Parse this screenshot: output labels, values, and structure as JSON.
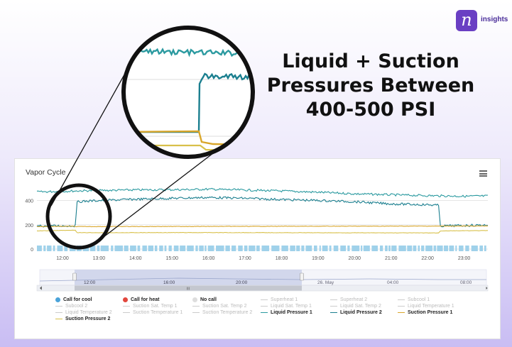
{
  "brand": {
    "logo_letter": "n",
    "name": "insights",
    "accent": "#6a3fc3"
  },
  "headline": [
    "Liquid + Suction",
    "Pressures Between",
    "400-500 PSI"
  ],
  "chart_data": {
    "type": "line",
    "title": "Vapor Cycle",
    "y_ticks": [
      "0",
      "200",
      "400"
    ],
    "ylim": [
      0,
      520
    ],
    "x_ticks": [
      "12:00",
      "13:00",
      "14:00",
      "15:00",
      "16:00",
      "17:00",
      "18:00",
      "19:00",
      "20:00",
      "21:00",
      "22:00",
      "23:00"
    ],
    "x_range_hours": [
      11.3,
      23.65
    ],
    "series": [
      {
        "name": "Liquid Pressure 1",
        "color": "#2b9aa0",
        "points": [
          [
            11.3,
            470
          ],
          [
            12.5,
            480
          ],
          [
            14.0,
            487
          ],
          [
            15.5,
            490
          ],
          [
            16.0,
            493
          ],
          [
            17.0,
            486
          ],
          [
            18.0,
            478
          ],
          [
            19.0,
            468
          ],
          [
            20.0,
            455
          ],
          [
            21.0,
            447
          ],
          [
            22.0,
            440
          ],
          [
            23.0,
            435
          ],
          [
            23.65,
            437
          ]
        ]
      },
      {
        "name": "Liquid Pressure 2",
        "color": "#1b7f8f",
        "points": [
          [
            11.3,
            190
          ],
          [
            12.35,
            192
          ],
          [
            12.4,
            390
          ],
          [
            13.0,
            400
          ],
          [
            14.0,
            410
          ],
          [
            15.0,
            418
          ],
          [
            16.0,
            425
          ],
          [
            17.0,
            418
          ],
          [
            18.0,
            408
          ],
          [
            19.0,
            400
          ],
          [
            20.0,
            390
          ],
          [
            21.0,
            372
          ],
          [
            22.0,
            365
          ],
          [
            22.3,
            360
          ],
          [
            22.35,
            190
          ],
          [
            23.65,
            198
          ]
        ]
      },
      {
        "name": "Suction Pressure 1",
        "color": "#d9a62a",
        "points": [
          [
            11.3,
            185
          ],
          [
            12.3,
            188
          ],
          [
            12.35,
            185
          ],
          [
            23.65,
            190
          ]
        ]
      },
      {
        "name": "Suction Pressure 2",
        "color": "#d8c04a",
        "points": [
          [
            11.3,
            150
          ],
          [
            12.35,
            155
          ],
          [
            12.4,
            135
          ],
          [
            16.0,
            136
          ],
          [
            20.0,
            134
          ],
          [
            22.3,
            133
          ],
          [
            22.35,
            150
          ],
          [
            23.65,
            152
          ]
        ]
      }
    ],
    "call_for_cool_color": "#9fd1ea",
    "navigator": {
      "labels": [
        "12:00",
        "16:00",
        "20:00",
        "26. May",
        "04:00",
        "08:00"
      ],
      "selection_label": "III"
    },
    "legend": [
      {
        "label": "Call for cool",
        "kind": "dot",
        "color": "#4aa3d9",
        "active": true
      },
      {
        "label": "Call for heat",
        "kind": "dot",
        "color": "#e2473d",
        "active": true
      },
      {
        "label": "No call",
        "kind": "dot",
        "color": "#dddddd",
        "active": true
      },
      {
        "label": "Superheat 1",
        "kind": "line",
        "color": "#cccccc",
        "active": false
      },
      {
        "label": "Superheat 2",
        "kind": "line",
        "color": "#cccccc",
        "active": false
      },
      {
        "label": "Subcool 1",
        "kind": "line",
        "color": "#cccccc",
        "active": false
      },
      {
        "label": "Subcool 2",
        "kind": "line",
        "color": "#cccccc",
        "active": false
      },
      {
        "label": "Suction Sat. Temp 1",
        "kind": "line",
        "color": "#cccccc",
        "active": false
      },
      {
        "label": "Suction Sat. Temp 2",
        "kind": "line",
        "color": "#cccccc",
        "active": false
      },
      {
        "label": "Liquid Sat. Temp 1",
        "kind": "line",
        "color": "#cccccc",
        "active": false
      },
      {
        "label": "Liquid Sat. Temp 2",
        "kind": "line",
        "color": "#cccccc",
        "active": false
      },
      {
        "label": "Liquid Temperature 1",
        "kind": "line",
        "color": "#cccccc",
        "active": false
      },
      {
        "label": "Liquid Temperature 2",
        "kind": "line",
        "color": "#cccccc",
        "active": false
      },
      {
        "label": "Suction Temperature 1",
        "kind": "line",
        "color": "#cccccc",
        "active": false
      },
      {
        "label": "Suction Temperature 2",
        "kind": "line",
        "color": "#cccccc",
        "active": false
      },
      {
        "label": "Liquid Pressure 1",
        "kind": "line",
        "color": "#2b9aa0",
        "active": true
      },
      {
        "label": "Liquid Pressure 2",
        "kind": "line",
        "color": "#1b7f8f",
        "active": true
      },
      {
        "label": "Suction Pressure 1",
        "kind": "line",
        "color": "#d9a62a",
        "active": true
      },
      {
        "label": "Suction Pressure 2",
        "kind": "line",
        "color": "#d8c04a",
        "active": true
      }
    ]
  }
}
